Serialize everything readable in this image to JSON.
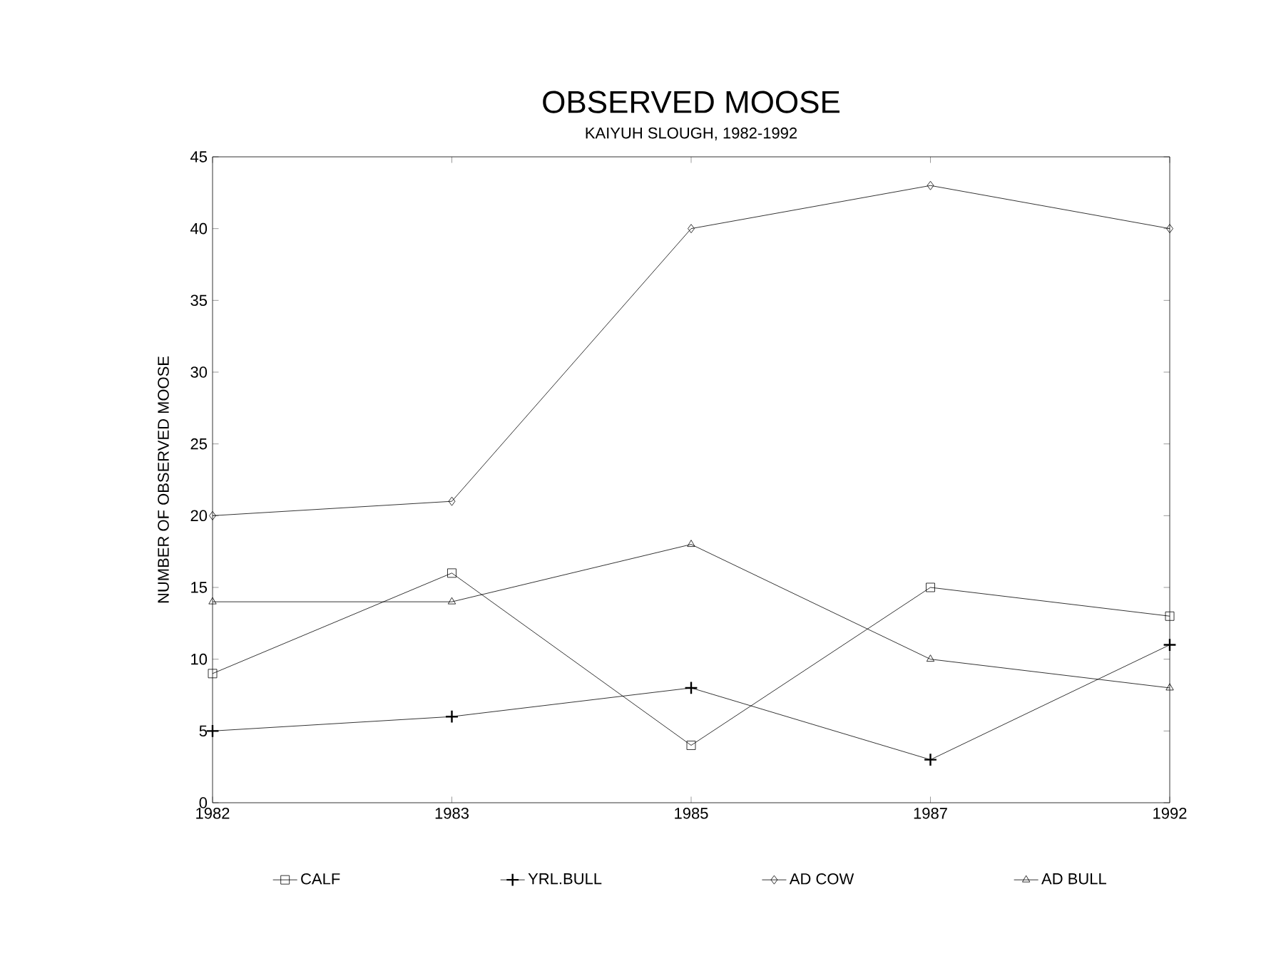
{
  "chart_data": {
    "type": "line",
    "title": "OBSERVED MOOSE",
    "subtitle": "KAIYUH SLOUGH, 1982-1992",
    "ylabel": "NUMBER OF OBSERVED MOOSE",
    "categories": [
      "1982",
      "1983",
      "1985",
      "1987",
      "1992"
    ],
    "series": [
      {
        "name": "CALF",
        "color": "#000000",
        "marker": "square",
        "values": [
          9,
          16,
          4,
          15,
          13
        ]
      },
      {
        "name": "YRL.BULL",
        "color": "#000000",
        "marker": "cross",
        "values": [
          5,
          6,
          8,
          3,
          11
        ]
      },
      {
        "name": "AD COW",
        "color": "#000000",
        "marker": "diamond",
        "values": [
          20,
          21,
          40,
          43,
          40
        ]
      },
      {
        "name": "AD BULL",
        "color": "#000000",
        "marker": "triangle",
        "values": [
          14,
          14,
          18,
          10,
          8
        ]
      }
    ],
    "ylim": [
      0,
      45
    ],
    "yticks": [
      0,
      5,
      10,
      15,
      20,
      25,
      30,
      35,
      40,
      45
    ],
    "grid": false,
    "legend": "bottom",
    "line_style": "solid"
  }
}
